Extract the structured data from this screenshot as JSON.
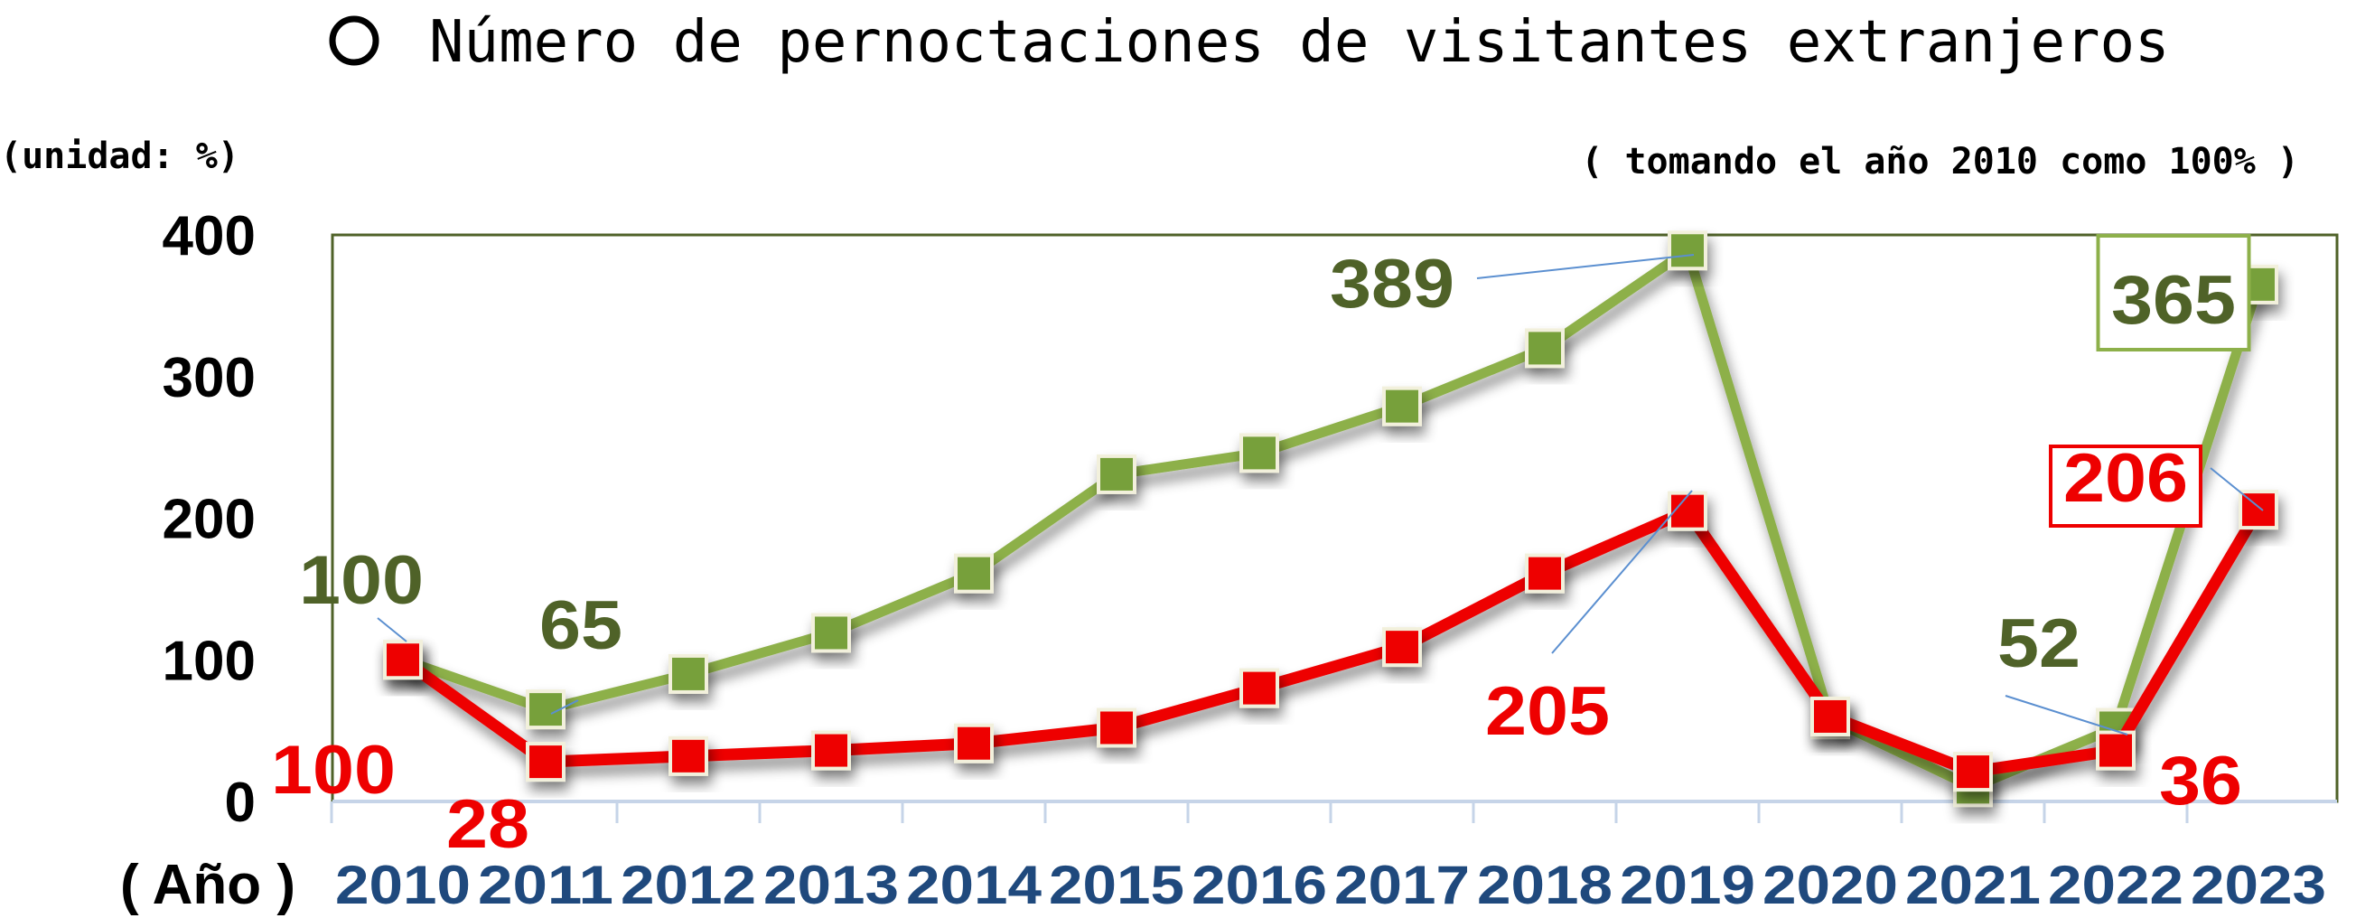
{
  "chart_data": {
    "type": "line",
    "title": "Número de pernoctaciones de visitantes extranjeros",
    "subtitle": "( tomando el año 2010 como 100% )",
    "ylabel": "(unidad: %)",
    "xlabel": "( Año )",
    "ylim": [
      0,
      400
    ],
    "yticks": [
      "0",
      "100",
      "200",
      "300",
      "400"
    ],
    "grid": false,
    "categories": [
      "2010",
      "2011",
      "2012",
      "2013",
      "2014",
      "2015",
      "2016",
      "2017",
      "2018",
      "2019",
      "2020",
      "2021",
      "2022",
      "2023"
    ],
    "series": [
      {
        "color": "#8db04a",
        "marker_color": "#77a03a",
        "label_color": "#4f6228",
        "values": [
          100,
          65,
          90,
          119,
          161,
          231,
          246,
          279,
          320,
          389,
          58,
          10,
          52,
          365
        ]
      },
      {
        "color": "#ee0000",
        "marker_color": "#ee0000",
        "label_color": "#ee0000",
        "values": [
          100,
          28,
          32,
          36,
          41,
          52,
          80,
          109,
          161,
          205,
          60,
          21,
          36,
          206
        ]
      }
    ],
    "data_labels": [
      {
        "series": 0,
        "index": 0,
        "text": "100"
      },
      {
        "series": 0,
        "index": 1,
        "text": "65"
      },
      {
        "series": 0,
        "index": 9,
        "text": "389"
      },
      {
        "series": 0,
        "index": 12,
        "text": "52"
      },
      {
        "series": 0,
        "index": 13,
        "text": "365",
        "boxed": true
      },
      {
        "series": 1,
        "index": 0,
        "text": "100"
      },
      {
        "series": 1,
        "index": 1,
        "text": "28"
      },
      {
        "series": 1,
        "index": 9,
        "text": "205"
      },
      {
        "series": 1,
        "index": 12,
        "text": "36"
      },
      {
        "series": 1,
        "index": 13,
        "text": "206",
        "boxed": true
      }
    ]
  }
}
